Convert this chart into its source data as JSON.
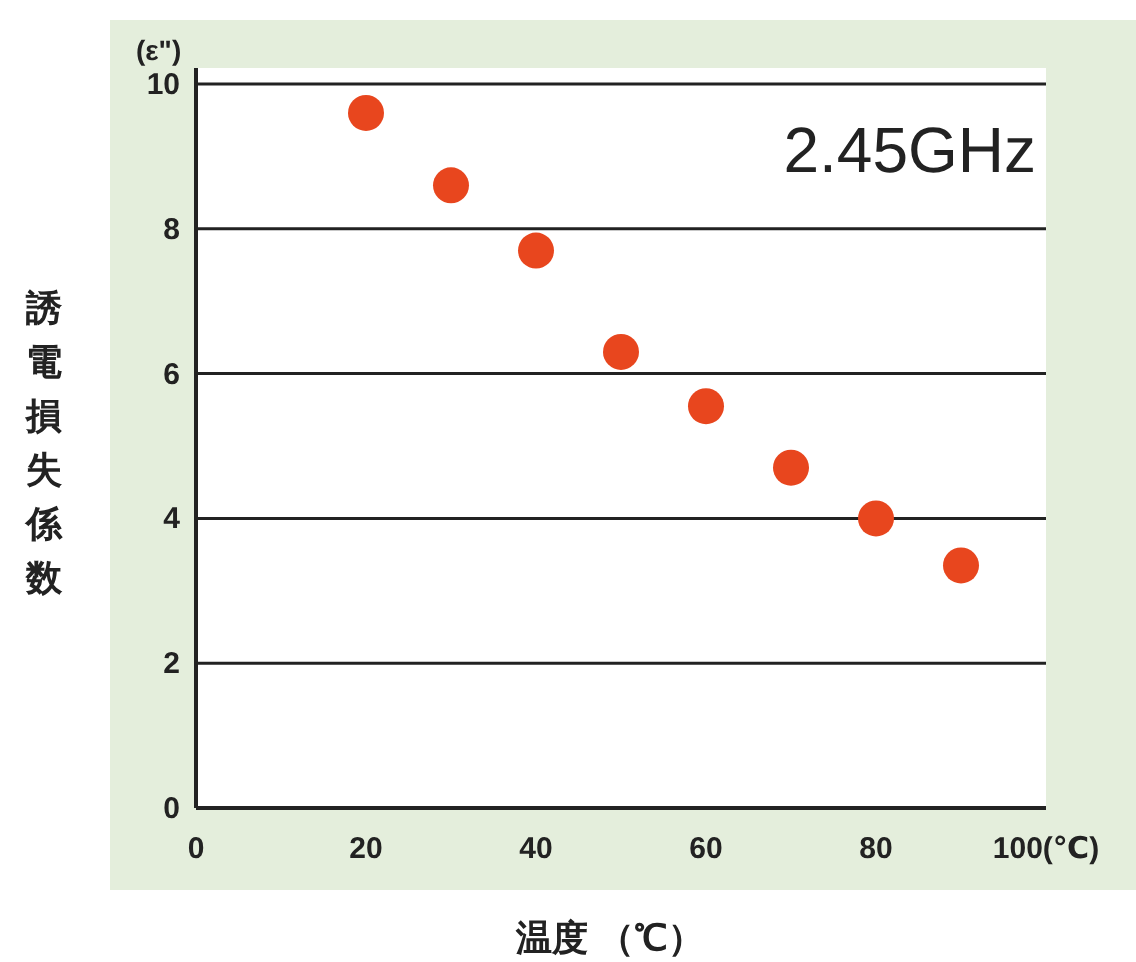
{
  "chart_data": {
    "type": "scatter",
    "ylabel": "誘電損失係数",
    "xlabel": "温度 （℃）",
    "annotations": [
      "(ε\")",
      "2.45GHz"
    ],
    "x": [
      20,
      30,
      40,
      50,
      60,
      70,
      80,
      90
    ],
    "series": [
      {
        "color": "#e8461e",
        "values": [
          9.6,
          8.6,
          7.7,
          6.3,
          5.55,
          4.7,
          4.0,
          3.35
        ]
      }
    ],
    "xlim": [
      0,
      100
    ],
    "ylim": [
      0,
      10
    ],
    "xticks": [
      0,
      20,
      40,
      60,
      80,
      {
        "value": 100,
        "label": "100(℃)"
      }
    ],
    "yticks": [
      0,
      2,
      4,
      6,
      8,
      10
    ],
    "grid": "y",
    "marker": "circle"
  }
}
